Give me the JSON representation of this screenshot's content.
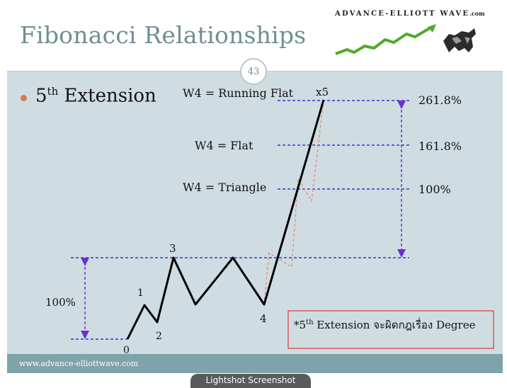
{
  "header": {
    "title": "Fibonacci Relationships",
    "logo_text": "ADVANCE-ELLIOTT WAVE",
    "logo_suffix": ".com"
  },
  "slide_number": "43",
  "bullet": {
    "base": "5",
    "sup": "th",
    "rest": " Extension"
  },
  "diagram": {
    "wave_labels": [
      "0",
      "1",
      "2",
      "3",
      "4",
      "x5"
    ],
    "left_level_label": "100%",
    "levels": [
      {
        "name": "W4 = Running Flat",
        "pct": "261.8%"
      },
      {
        "name": "W4 = Flat",
        "pct": "161.8%"
      },
      {
        "name": "W4 = Triangle",
        "pct": "100%"
      }
    ],
    "note": {
      "prefix": "*5",
      "sup": "th",
      "rest": " Extension จะผิดกฎเรื่อง Degree"
    },
    "colors": {
      "wave": "#000000",
      "guide": "#3333dd",
      "arrow": "#6a2fd1",
      "alt_path": "#e98a6d",
      "note_border": "#d83a3a"
    }
  },
  "footer": {
    "url": "www.advance-elliottwave.com"
  },
  "overlay": {
    "tab_label": "Lightshot Screenshot"
  }
}
